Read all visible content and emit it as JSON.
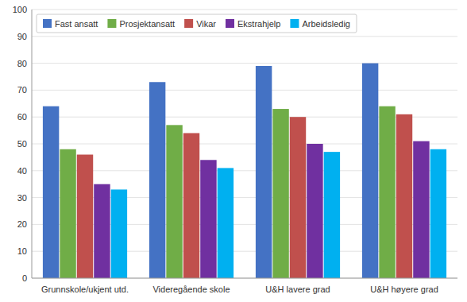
{
  "chart_data": {
    "type": "bar",
    "categories": [
      "Grunnskole/ukjent utd.",
      "Videregående skole",
      "U&H lavere grad",
      "U&H høyere grad"
    ],
    "series": [
      {
        "name": "Fast ansatt",
        "values": [
          64,
          73,
          79,
          80
        ],
        "color": "#4472C4"
      },
      {
        "name": "Prosjektansatt",
        "values": [
          48,
          57,
          63,
          64
        ],
        "color": "#70AD47"
      },
      {
        "name": "Vikar",
        "values": [
          46,
          54,
          60,
          61
        ],
        "color": "#C0504D"
      },
      {
        "name": "Ekstrahjelp",
        "values": [
          35,
          44,
          50,
          51
        ],
        "color": "#7030A0"
      },
      {
        "name": "Arbeidsledig",
        "values": [
          33,
          41,
          47,
          48
        ],
        "color": "#00B0F0"
      }
    ],
    "ylim": [
      0,
      100
    ],
    "yticks": [
      0,
      10,
      20,
      30,
      40,
      50,
      60,
      70,
      80,
      90,
      100
    ],
    "grid": true,
    "legend": "upper left"
  }
}
